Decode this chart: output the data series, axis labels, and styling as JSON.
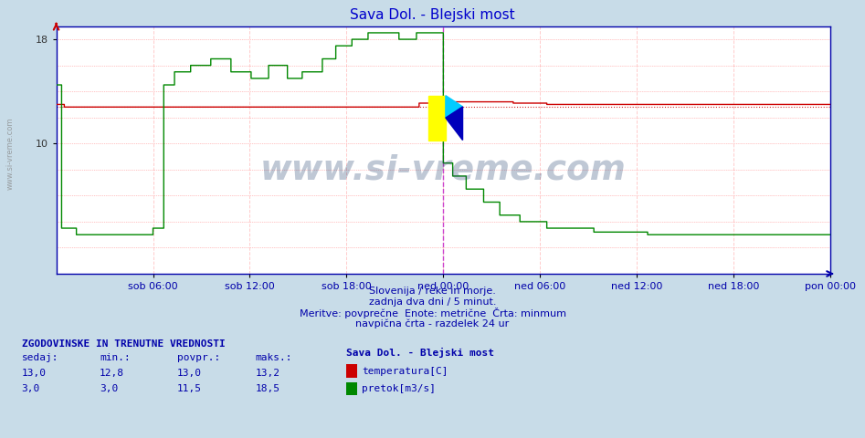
{
  "title": "Sava Dol. - Blejski most",
  "title_color": "#0000cc",
  "bg_color": "#c8dce8",
  "plot_bg_color": "#ffffff",
  "grid_color_h": "#ff8888",
  "grid_color_v": "#ffcccc",
  "ylim": [
    0,
    19.0
  ],
  "yticks": [
    10,
    18
  ],
  "ytick_labels": [
    "10",
    "18"
  ],
  "xlabel_color": "#0000aa",
  "xtick_labels": [
    "sob 06:00",
    "sob 12:00",
    "sob 18:00",
    "ned 00:00",
    "ned 06:00",
    "ned 12:00",
    "ned 18:00",
    "pon 00:00"
  ],
  "total_points": 577,
  "vline_idx": 288,
  "vline_color": "#cc44cc",
  "temp_color": "#cc0000",
  "flow_color": "#008800",
  "min_line_color": "#cc0000",
  "temp_min": 12.8,
  "temp_avg": 13.0,
  "temp_max": 13.2,
  "temp_current": 13.0,
  "flow_min": 3.0,
  "flow_avg": 11.5,
  "flow_max": 18.5,
  "flow_current": 3.0,
  "watermark": "www.si-vreme.com",
  "watermark_color": "#1a3a6a",
  "watermark_alpha": 0.28,
  "subtitle1": "Slovenija / reke in morje.",
  "subtitle2": "zadnja dva dni / 5 minut.",
  "subtitle3": "Meritve: povprečne  Enote: metrične  Črta: minmum",
  "subtitle4": "navpična črta - razdelek 24 ur",
  "legend_title": "Sava Dol. - Blejski most",
  "legend_temp": "temperatura[C]",
  "legend_flow": "pretok[m3/s]",
  "table_header": "ZGODOVINSKE IN TRENUTNE VREDNOSTI",
  "col_sedaj": "sedaj:",
  "col_min": "min.:",
  "col_povpr": "povpr.:",
  "col_maks": "maks.:",
  "sidebar_text": "www.si-vreme.com",
  "sidebar_color": "#888888",
  "temp_vals": [
    "13,0",
    "12,8",
    "13,0",
    "13,2"
  ],
  "flow_vals": [
    "3,0",
    "3,0",
    "11,5",
    "18,5"
  ]
}
